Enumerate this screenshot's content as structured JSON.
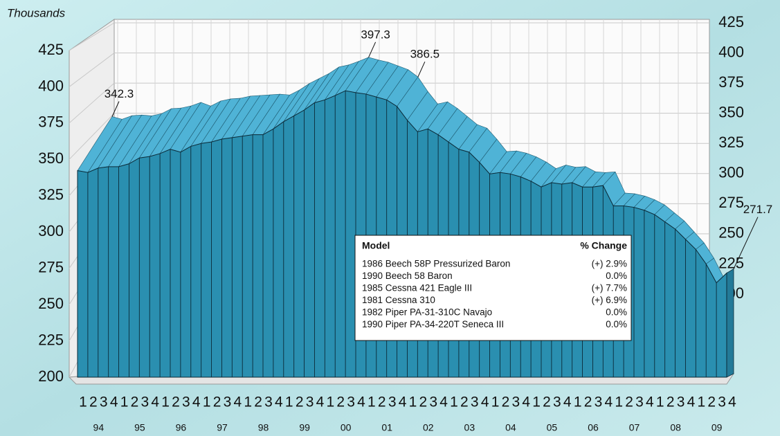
{
  "chart_data": {
    "type": "area3d",
    "y_unit_label": "Thousands",
    "categories": [
      "1",
      "2",
      "3",
      "4",
      "1",
      "2",
      "3",
      "4",
      "1",
      "2",
      "3",
      "4",
      "1",
      "2",
      "3",
      "4",
      "1",
      "2",
      "3",
      "4",
      "1",
      "2",
      "3",
      "4",
      "1",
      "2",
      "3",
      "4",
      "1",
      "2",
      "3",
      "4",
      "1",
      "2",
      "3",
      "4",
      "1",
      "2",
      "3",
      "4",
      "1",
      "2",
      "3",
      "4",
      "1",
      "2",
      "3",
      "4",
      "1",
      "2",
      "3",
      "4",
      "1",
      "2",
      "3",
      "4",
      "1",
      "2",
      "3",
      "4",
      "1",
      "2",
      "3",
      "4"
    ],
    "year_labels": [
      "94",
      "95",
      "96",
      "97",
      "98",
      "99",
      "00",
      "01",
      "02",
      "03",
      "04",
      "05",
      "06",
      "07",
      "08",
      "09"
    ],
    "values": [
      342.3,
      341,
      344,
      345,
      345,
      347,
      351,
      352,
      354,
      357,
      355,
      359,
      361,
      362,
      364,
      365,
      366,
      367,
      367,
      371,
      376,
      380,
      384,
      389,
      391,
      394,
      397.3,
      396,
      395,
      393,
      391,
      386.5,
      377,
      369,
      371,
      367,
      362,
      357,
      355,
      348,
      340,
      341,
      340,
      338,
      335,
      331,
      334,
      333,
      334,
      331,
      331,
      332,
      318,
      318,
      317,
      315,
      312,
      307,
      302,
      295,
      288,
      278,
      265,
      271.7
    ],
    "value_labels": [
      "342.3",
      null,
      null,
      null,
      null,
      null,
      null,
      null,
      null,
      null,
      null,
      null,
      null,
      null,
      null,
      null,
      null,
      null,
      null,
      null,
      null,
      null,
      null,
      null,
      null,
      null,
      "397.3",
      null,
      null,
      null,
      null,
      "386.5",
      null,
      null,
      null,
      null,
      null,
      null,
      null,
      null,
      null,
      null,
      null,
      null,
      null,
      null,
      null,
      null,
      null,
      null,
      null,
      null,
      null,
      null,
      null,
      null,
      null,
      null,
      null,
      null,
      null,
      null,
      null,
      "271.7"
    ],
    "highlight_index": 31,
    "highlight_color": "#e8262a",
    "front_color": "#2a8fb0",
    "top_color": "#4fb3d6",
    "ylim": [
      200,
      425
    ],
    "yticks": [
      200,
      225,
      250,
      275,
      300,
      325,
      350,
      375,
      400,
      425
    ],
    "grid": true,
    "table": {
      "headers": [
        "Model",
        "% Change"
      ],
      "rows": [
        [
          "1986 Beech 58P Pressurized Baron",
          "(+) 2.9%"
        ],
        [
          "1990 Beech 58 Baron",
          "0.0%"
        ],
        [
          "1985 Cessna 421 Eagle III",
          "(+) 7.7%"
        ],
        [
          "1981 Cessna 310",
          "(+) 6.9%"
        ],
        [
          "1982 Piper PA-31-310C Navajo",
          "0.0%"
        ],
        [
          "1990 Piper PA-34-220T Seneca III",
          "0.0%"
        ]
      ]
    }
  }
}
